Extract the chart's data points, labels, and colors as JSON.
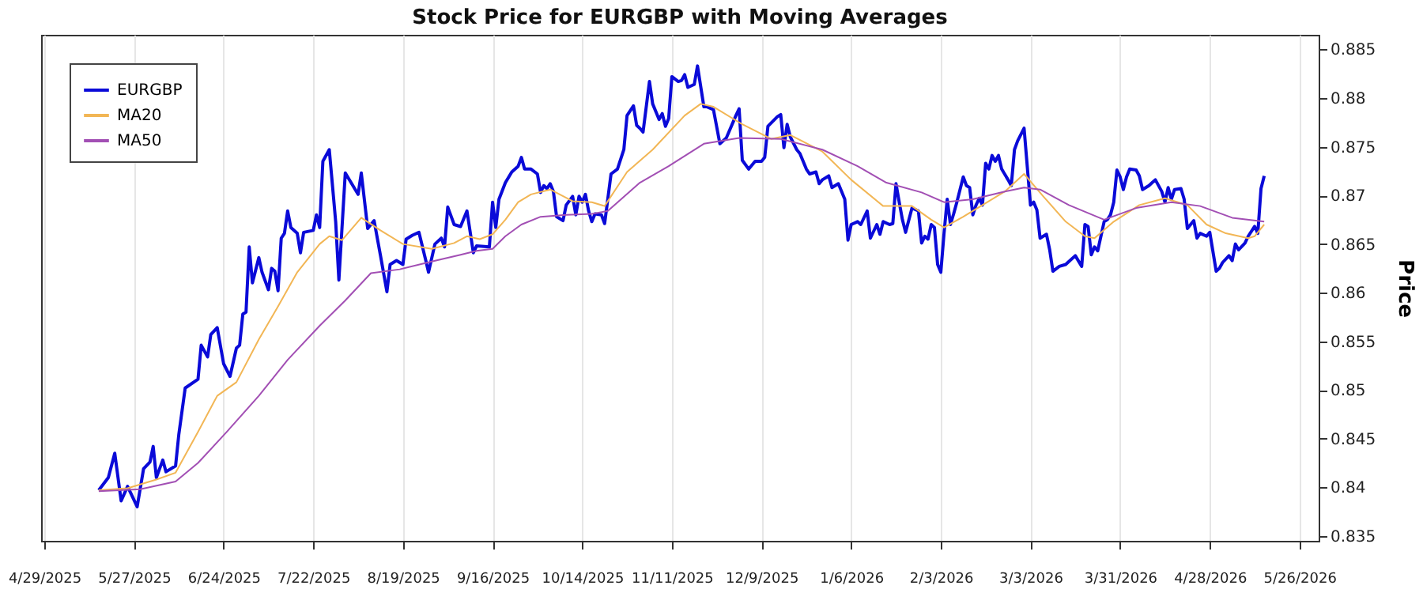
{
  "chart_data": {
    "type": "line",
    "title": "Stock Price for EURGBP with Moving Averages",
    "ylabel": "Price",
    "xlim": [
      "2025-04-28",
      "2026-06-01"
    ],
    "ylim": [
      0.8345,
      0.8865
    ],
    "xticks": [
      {
        "value": "2025-04-29",
        "label": "4/29/2025"
      },
      {
        "value": "2025-05-27",
        "label": "5/27/2025"
      },
      {
        "value": "2025-06-24",
        "label": "6/24/2025"
      },
      {
        "value": "2025-07-22",
        "label": "7/22/2025"
      },
      {
        "value": "2025-08-19",
        "label": "8/19/2025"
      },
      {
        "value": "2025-09-16",
        "label": "9/16/2025"
      },
      {
        "value": "2025-10-14",
        "label": "10/14/2025"
      },
      {
        "value": "2025-11-11",
        "label": "11/11/2025"
      },
      {
        "value": "2025-12-09",
        "label": "12/9/2025"
      },
      {
        "value": "2026-01-06",
        "label": "1/6/2026"
      },
      {
        "value": "2026-02-03",
        "label": "2/3/2026"
      },
      {
        "value": "2026-03-03",
        "label": "3/3/2026"
      },
      {
        "value": "2026-03-31",
        "label": "3/31/2026"
      },
      {
        "value": "2026-04-28",
        "label": "4/28/2026"
      },
      {
        "value": "2026-05-26",
        "label": "5/26/2026"
      }
    ],
    "yticks": [
      0.835,
      0.84,
      0.845,
      0.85,
      0.855,
      0.86,
      0.865,
      0.87,
      0.875,
      0.88,
      0.885
    ],
    "grid": "x",
    "legend": "top left",
    "marker": "none",
    "line_style": "solid",
    "series": [
      {
        "name": "EURGBP",
        "color": "#0a0ad8",
        "x": [
          "2025-05-16",
          "2025-05-19",
          "2025-05-21",
          "2025-05-23",
          "2025-05-25",
          "2025-05-28",
          "2025-05-30",
          "2025-06-01",
          "2025-06-02",
          "2025-06-03",
          "2025-06-05",
          "2025-06-06",
          "2025-06-09",
          "2025-06-10",
          "2025-06-12",
          "2025-06-16",
          "2025-06-17",
          "2025-06-19",
          "2025-06-20",
          "2025-06-22",
          "2025-06-24",
          "2025-06-26",
          "2025-06-28",
          "2025-06-29",
          "2025-06-30",
          "2025-07-01",
          "2025-07-02",
          "2025-07-03",
          "2025-07-05",
          "2025-07-06",
          "2025-07-08",
          "2025-07-09",
          "2025-07-10",
          "2025-07-11",
          "2025-07-12",
          "2025-07-13",
          "2025-07-14",
          "2025-07-15",
          "2025-07-17",
          "2025-07-18",
          "2025-07-19",
          "2025-07-22",
          "2025-07-23",
          "2025-07-24",
          "2025-07-25",
          "2025-07-27",
          "2025-07-29",
          "2025-07-30",
          "2025-08-01",
          "2025-08-05",
          "2025-08-06",
          "2025-08-08",
          "2025-08-10",
          "2025-08-12",
          "2025-08-14",
          "2025-08-15",
          "2025-08-17",
          "2025-08-19",
          "2025-08-20",
          "2025-08-22",
          "2025-08-24",
          "2025-08-26",
          "2025-08-27",
          "2025-08-29",
          "2025-08-31",
          "2025-09-01",
          "2025-09-02",
          "2025-09-04",
          "2025-09-06",
          "2025-09-08",
          "2025-09-10",
          "2025-09-11",
          "2025-09-15",
          "2025-09-16",
          "2025-09-17",
          "2025-09-18",
          "2025-09-20",
          "2025-09-22",
          "2025-09-24",
          "2025-09-25",
          "2025-09-26",
          "2025-09-28",
          "2025-09-30",
          "2025-10-01",
          "2025-10-02",
          "2025-10-03",
          "2025-10-04",
          "2025-10-05",
          "2025-10-06",
          "2025-10-08",
          "2025-10-09",
          "2025-10-11",
          "2025-10-12",
          "2025-10-13",
          "2025-10-14",
          "2025-10-15",
          "2025-10-16",
          "2025-10-17",
          "2025-10-18",
          "2025-10-20",
          "2025-10-21",
          "2025-10-23",
          "2025-10-25",
          "2025-10-27",
          "2025-10-28",
          "2025-10-30",
          "2025-10-31",
          "2025-11-01",
          "2025-11-02",
          "2025-11-04",
          "2025-11-05",
          "2025-11-07",
          "2025-11-08",
          "2025-11-09",
          "2025-11-10",
          "2025-11-11",
          "2025-11-13",
          "2025-11-14",
          "2025-11-15",
          "2025-11-16",
          "2025-11-18",
          "2025-11-19",
          "2025-11-21",
          "2025-11-22",
          "2025-11-24",
          "2025-11-26",
          "2025-11-28",
          "2025-12-01",
          "2025-12-02",
          "2025-12-03",
          "2025-12-05",
          "2025-12-07",
          "2025-12-09",
          "2025-12-10",
          "2025-12-11",
          "2025-12-14",
          "2025-12-15",
          "2025-12-16",
          "2025-12-17",
          "2025-12-18",
          "2025-12-20",
          "2025-12-21",
          "2025-12-23",
          "2025-12-24",
          "2025-12-26",
          "2025-12-27",
          "2025-12-28",
          "2025-12-30",
          "2025-12-31",
          "2026-01-02",
          "2026-01-04",
          "2026-01-05",
          "2026-01-06",
          "2026-01-08",
          "2026-01-09",
          "2026-01-11",
          "2026-01-12",
          "2026-01-14",
          "2026-01-15",
          "2026-01-16",
          "2026-01-18",
          "2026-01-19",
          "2026-01-20",
          "2026-01-21",
          "2026-01-22",
          "2026-01-23",
          "2026-01-25",
          "2026-01-27",
          "2026-01-28",
          "2026-01-29",
          "2026-01-30",
          "2026-01-31",
          "2026-02-01",
          "2026-02-02",
          "2026-02-03",
          "2026-02-04",
          "2026-02-05",
          "2026-02-06",
          "2026-02-07",
          "2026-02-08",
          "2026-02-10",
          "2026-02-11",
          "2026-02-12",
          "2026-02-13",
          "2026-02-14",
          "2026-02-15",
          "2026-02-16",
          "2026-02-17",
          "2026-02-18",
          "2026-02-19",
          "2026-02-20",
          "2026-02-21",
          "2026-02-22",
          "2026-02-24",
          "2026-02-25",
          "2026-02-26",
          "2026-02-27",
          "2026-03-01",
          "2026-03-03",
          "2026-03-04",
          "2026-03-05",
          "2026-03-06",
          "2026-03-08",
          "2026-03-09",
          "2026-03-10",
          "2026-03-12",
          "2026-03-14",
          "2026-03-15",
          "2026-03-17",
          "2026-03-19",
          "2026-03-20",
          "2026-03-21",
          "2026-03-22",
          "2026-03-23",
          "2026-03-24",
          "2026-03-26",
          "2026-03-27",
          "2026-03-28",
          "2026-03-29",
          "2026-03-30",
          "2026-03-31",
          "2026-04-01",
          "2026-04-02",
          "2026-04-03",
          "2026-04-05",
          "2026-04-06",
          "2026-04-07",
          "2026-04-09",
          "2026-04-10",
          "2026-04-11",
          "2026-04-13",
          "2026-04-14",
          "2026-04-15",
          "2026-04-16",
          "2026-04-17",
          "2026-04-19",
          "2026-04-20",
          "2026-04-21",
          "2026-04-23",
          "2026-04-24",
          "2026-04-25",
          "2026-04-27",
          "2026-04-28",
          "2026-04-30",
          "2026-05-01",
          "2026-05-02",
          "2026-05-04",
          "2026-05-05",
          "2026-05-06",
          "2026-05-07",
          "2026-05-09",
          "2026-05-10",
          "2026-05-12",
          "2026-05-13",
          "2026-05-14",
          "2026-05-15"
        ],
        "values": [
          0.8397,
          0.841,
          0.8435,
          0.8386,
          0.8401,
          0.838,
          0.8419,
          0.8426,
          0.8442,
          0.841,
          0.8428,
          0.8416,
          0.8422,
          0.8454,
          0.8502,
          0.8511,
          0.8546,
          0.8534,
          0.8557,
          0.8564,
          0.8527,
          0.8514,
          0.8543,
          0.8546,
          0.8578,
          0.858,
          0.8647,
          0.861,
          0.8636,
          0.8621,
          0.8603,
          0.8625,
          0.8622,
          0.8602,
          0.8656,
          0.8661,
          0.8684,
          0.8667,
          0.8661,
          0.8641,
          0.8662,
          0.8664,
          0.868,
          0.8667,
          0.8735,
          0.8747,
          0.8673,
          0.8613,
          0.8723,
          0.8701,
          0.8723,
          0.8666,
          0.8674,
          0.8638,
          0.8601,
          0.8629,
          0.8633,
          0.8629,
          0.8655,
          0.8659,
          0.8662,
          0.8635,
          0.8621,
          0.865,
          0.8656,
          0.8647,
          0.8688,
          0.867,
          0.8668,
          0.8684,
          0.8641,
          0.8648,
          0.8647,
          0.8693,
          0.8667,
          0.8696,
          0.8713,
          0.8724,
          0.873,
          0.8739,
          0.8727,
          0.8727,
          0.8722,
          0.8703,
          0.871,
          0.8707,
          0.8712,
          0.8704,
          0.8678,
          0.8674,
          0.869,
          0.8699,
          0.868,
          0.8699,
          0.8693,
          0.8701,
          0.8684,
          0.8673,
          0.8681,
          0.868,
          0.8671,
          0.8722,
          0.8727,
          0.8747,
          0.8782,
          0.8792,
          0.8772,
          0.8769,
          0.8765,
          0.8817,
          0.8794,
          0.8778,
          0.8784,
          0.8771,
          0.8779,
          0.8822,
          0.8817,
          0.8818,
          0.8824,
          0.8811,
          0.8814,
          0.8833,
          0.8791,
          0.8791,
          0.8788,
          0.8753,
          0.8759,
          0.8782,
          0.8789,
          0.8736,
          0.8727,
          0.8735,
          0.8735,
          0.8739,
          0.8771,
          0.8781,
          0.8783,
          0.8749,
          0.8773,
          0.876,
          0.8747,
          0.8743,
          0.8727,
          0.8722,
          0.8724,
          0.8712,
          0.8716,
          0.872,
          0.8708,
          0.8712,
          0.8696,
          0.8654,
          0.867,
          0.8673,
          0.867,
          0.8684,
          0.8656,
          0.867,
          0.866,
          0.8673,
          0.867,
          0.8671,
          0.8712,
          0.8693,
          0.8675,
          0.8662,
          0.8687,
          0.8684,
          0.8651,
          0.8658,
          0.8655,
          0.867,
          0.8667,
          0.8629,
          0.8621,
          0.8661,
          0.8696,
          0.867,
          0.8681,
          0.8693,
          0.8719,
          0.871,
          0.8708,
          0.868,
          0.869,
          0.8697,
          0.869,
          0.8733,
          0.8727,
          0.8741,
          0.8735,
          0.8741,
          0.8727,
          0.8716,
          0.871,
          0.8747,
          0.8756,
          0.8769,
          0.869,
          0.8693,
          0.8685,
          0.8656,
          0.866,
          0.8644,
          0.8622,
          0.8627,
          0.8629,
          0.8632,
          0.8638,
          0.8627,
          0.867,
          0.8668,
          0.8639,
          0.8647,
          0.8643,
          0.8673,
          0.8675,
          0.868,
          0.8693,
          0.8726,
          0.8719,
          0.8706,
          0.8719,
          0.8727,
          0.8726,
          0.872,
          0.8706,
          0.871,
          0.8713,
          0.8716,
          0.8704,
          0.8693,
          0.8708,
          0.8696,
          0.8706,
          0.8707,
          0.8696,
          0.8666,
          0.8674,
          0.8656,
          0.8661,
          0.8658,
          0.8662,
          0.8622,
          0.8625,
          0.8631,
          0.8638,
          0.8633,
          0.865,
          0.8644,
          0.8651,
          0.8658,
          0.8668,
          0.8661,
          0.8707,
          0.872
        ]
      },
      {
        "name": "MA20",
        "color": "#f2b655",
        "x": [
          "2025-05-16",
          "2025-05-25",
          "2025-06-03",
          "2025-06-09",
          "2025-06-16",
          "2025-06-22",
          "2025-06-28",
          "2025-07-05",
          "2025-07-11",
          "2025-07-17",
          "2025-07-24",
          "2025-07-27",
          "2025-07-31",
          "2025-08-06",
          "2025-08-12",
          "2025-08-19",
          "2025-08-28",
          "2025-09-04",
          "2025-09-08",
          "2025-09-12",
          "2025-09-16",
          "2025-09-20",
          "2025-09-24",
          "2025-09-28",
          "2025-10-04",
          "2025-10-11",
          "2025-10-17",
          "2025-10-21",
          "2025-10-28",
          "2025-11-05",
          "2025-11-15",
          "2025-11-20",
          "2025-11-24",
          "2025-12-03",
          "2025-12-12",
          "2025-12-18",
          "2025-12-28",
          "2026-01-06",
          "2026-01-16",
          "2026-01-25",
          "2026-01-31",
          "2026-02-04",
          "2026-02-10",
          "2026-02-16",
          "2026-02-23",
          "2026-03-01",
          "2026-03-07",
          "2026-03-14",
          "2026-03-20",
          "2026-03-23",
          "2026-03-29",
          "2026-04-06",
          "2026-04-14",
          "2026-04-21",
          "2026-04-27",
          "2026-05-03",
          "2026-05-10",
          "2026-05-12",
          "2026-05-15"
        ],
        "values": [
          0.8397,
          0.8399,
          0.8408,
          0.8415,
          0.8457,
          0.8494,
          0.8508,
          0.8552,
          0.8586,
          0.8621,
          0.865,
          0.8658,
          0.8654,
          0.8677,
          0.8664,
          0.865,
          0.8645,
          0.8651,
          0.8658,
          0.8655,
          0.866,
          0.8675,
          0.8693,
          0.8701,
          0.8706,
          0.8694,
          0.8693,
          0.8689,
          0.8724,
          0.8747,
          0.8782,
          0.8794,
          0.8791,
          0.8773,
          0.8758,
          0.8762,
          0.8745,
          0.8716,
          0.8689,
          0.8689,
          0.8675,
          0.8667,
          0.8678,
          0.869,
          0.8704,
          0.8722,
          0.8699,
          0.8673,
          0.8658,
          0.8656,
          0.8673,
          0.869,
          0.8697,
          0.869,
          0.867,
          0.8661,
          0.8656,
          0.8658,
          0.867
        ]
      },
      {
        "name": "MA50",
        "color": "#a24fb4",
        "x": [
          "2025-05-16",
          "2025-05-29",
          "2025-06-09",
          "2025-06-16",
          "2025-06-25",
          "2025-07-05",
          "2025-07-14",
          "2025-07-24",
          "2025-08-01",
          "2025-08-09",
          "2025-08-18",
          "2025-08-28",
          "2025-09-06",
          "2025-09-11",
          "2025-09-16",
          "2025-09-20",
          "2025-09-25",
          "2025-10-01",
          "2025-10-09",
          "2025-10-17",
          "2025-10-22",
          "2025-11-01",
          "2025-11-10",
          "2025-11-21",
          "2025-12-02",
          "2025-12-15",
          "2025-12-28",
          "2026-01-08",
          "2026-01-17",
          "2026-01-28",
          "2026-02-04",
          "2026-02-13",
          "2026-02-23",
          "2026-03-01",
          "2026-03-06",
          "2026-03-15",
          "2026-03-26",
          "2026-04-05",
          "2026-04-16",
          "2026-04-25",
          "2026-05-05",
          "2026-05-15"
        ],
        "values": [
          0.8396,
          0.8398,
          0.8406,
          0.8425,
          0.8457,
          0.8494,
          0.8531,
          0.8566,
          0.8592,
          0.862,
          0.8624,
          0.8632,
          0.8639,
          0.8643,
          0.8645,
          0.8658,
          0.867,
          0.8678,
          0.868,
          0.8681,
          0.8684,
          0.8713,
          0.873,
          0.8753,
          0.8759,
          0.8758,
          0.8747,
          0.873,
          0.8713,
          0.8703,
          0.8693,
          0.8696,
          0.8704,
          0.8708,
          0.8706,
          0.869,
          0.8675,
          0.8687,
          0.8693,
          0.8689,
          0.8677,
          0.8673
        ]
      }
    ]
  }
}
